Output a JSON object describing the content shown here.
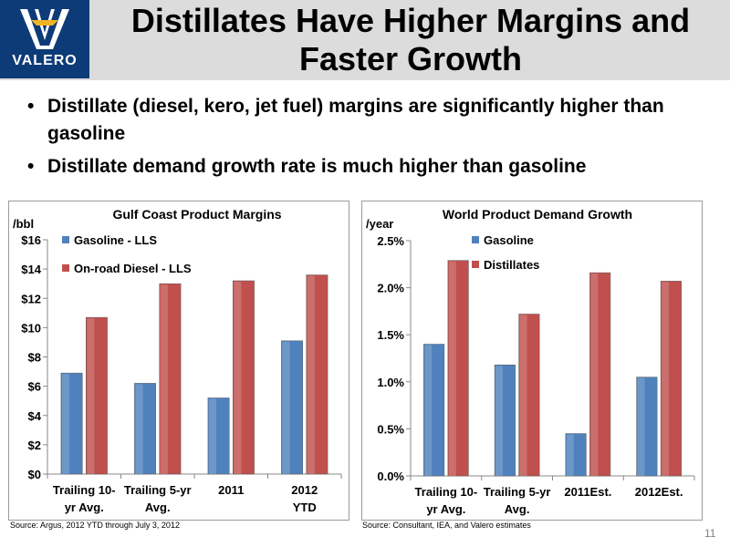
{
  "header": {
    "title_line1": "Distillates Have Higher Margins and",
    "title_line2": "Faster Growth",
    "logo_text": "VALERO"
  },
  "bullets": [
    "Distillate (diesel, kero, jet fuel) margins are significantly higher than gasoline",
    "Distillate demand growth rate is much higher than gasoline"
  ],
  "chart_data": [
    {
      "type": "bar",
      "title": "Gulf Coast Product Margins",
      "unit_label": "/bbl",
      "categories": [
        [
          "Trailing 10-",
          "yr Avg."
        ],
        [
          "Trailing 5-yr",
          "Avg."
        ],
        [
          "2011"
        ],
        [
          "2012",
          "YTD"
        ]
      ],
      "series": [
        {
          "name": "Gasoline - LLS",
          "values": [
            6.9,
            6.2,
            5.2,
            9.1
          ],
          "color": "#4f81bd"
        },
        {
          "name": "On-road Diesel - LLS",
          "values": [
            10.7,
            13.0,
            13.2,
            13.6
          ],
          "color": "#c0504d"
        }
      ],
      "ylim": [
        0,
        16
      ],
      "yticks": [
        0,
        2,
        4,
        6,
        8,
        10,
        12,
        14,
        16
      ],
      "ytick_labels": [
        "$0",
        "$2",
        "$4",
        "$6",
        "$8",
        "$10",
        "$12",
        "$14",
        "$16"
      ],
      "legend": "top-left",
      "grid": false
    },
    {
      "type": "bar",
      "title": "World  Product Demand Growth",
      "unit_label": "/year",
      "categories": [
        [
          "Trailing 10-",
          "yr Avg."
        ],
        [
          "Trailing 5-yr",
          "Avg."
        ],
        [
          "2011Est."
        ],
        [
          "2012Est."
        ]
      ],
      "series": [
        {
          "name": "Gasoline",
          "values": [
            1.4,
            1.18,
            0.45,
            1.05
          ],
          "color": "#4f81bd"
        },
        {
          "name": "Distillates",
          "values": [
            2.29,
            1.72,
            2.16,
            2.07
          ],
          "color": "#c0504d"
        }
      ],
      "ylim": [
        0,
        2.5
      ],
      "yticks": [
        0,
        0.5,
        1.0,
        1.5,
        2.0,
        2.5
      ],
      "ytick_labels": [
        "0.0%",
        "0.5%",
        "1.0%",
        "1.5%",
        "2.0%",
        "2.5%"
      ],
      "legend": "top-left",
      "grid": false
    }
  ],
  "sources": [
    "Source:  Argus, 2012 YTD through July 3, 2012",
    "Source:  Consultant, IEA, and Valero estimates"
  ],
  "page_number": "11"
}
